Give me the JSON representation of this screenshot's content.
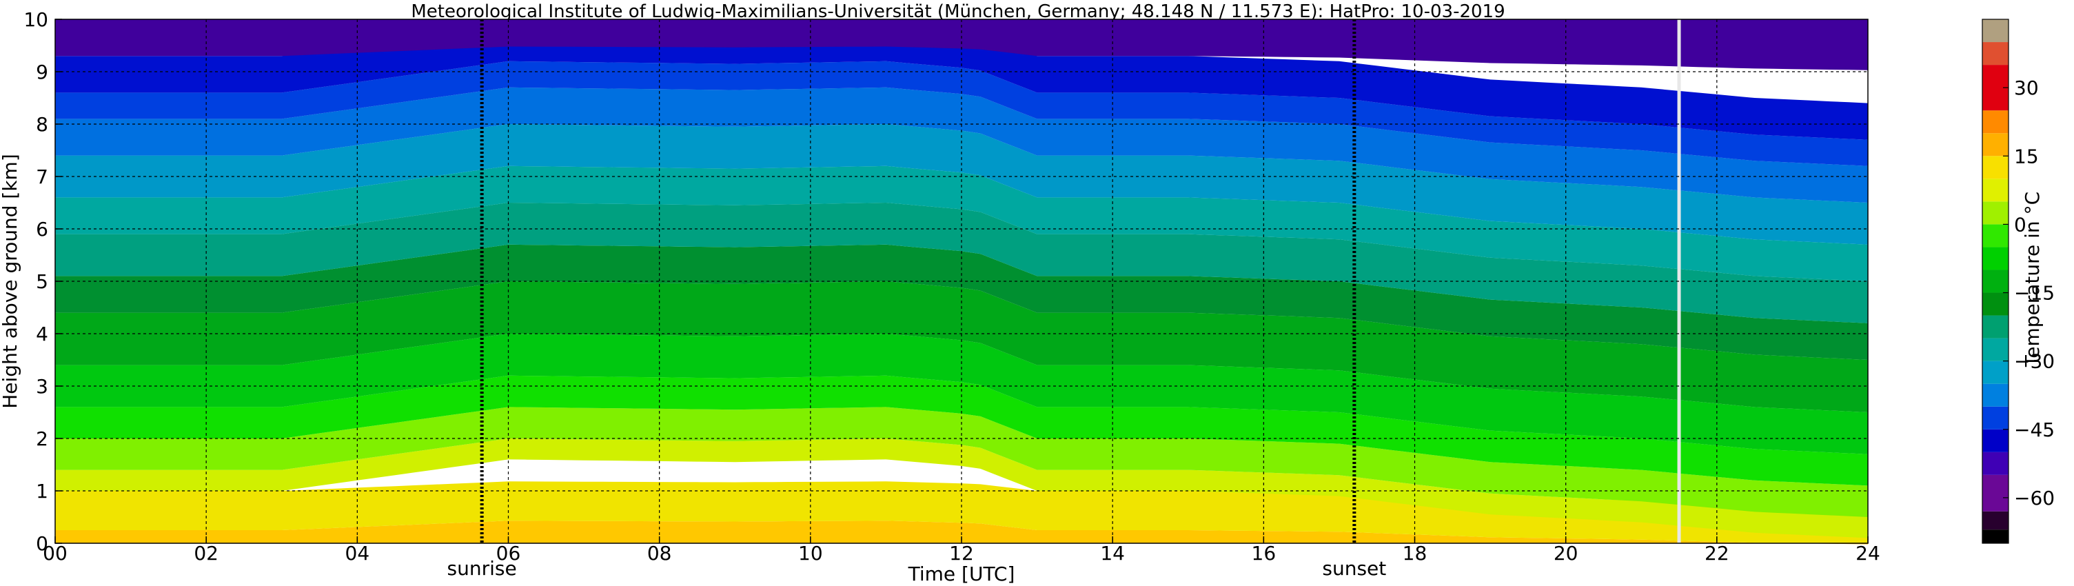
{
  "chart_data": {
    "type": "heatmap",
    "title": "Meteorological Institute of Ludwig-Maximilians-Universität (München, Germany; 48.148 N / 11.573 E):    HatPro: 10-03-2019",
    "xlabel": "Time [UTC]",
    "ylabel": "Height above ground [km]",
    "xlim": [
      0,
      24
    ],
    "ylim": [
      0,
      10
    ],
    "x_ticks": [
      "00",
      "02",
      "04",
      "06",
      "08",
      "10",
      "12",
      "14",
      "16",
      "18",
      "20",
      "22",
      "24"
    ],
    "y_ticks": [
      "0",
      "1",
      "2",
      "3",
      "4",
      "5",
      "6",
      "7",
      "8",
      "9",
      "10"
    ],
    "grid": true,
    "events": [
      {
        "label": "sunrise",
        "time_utc": 5.65
      },
      {
        "label": "sunset",
        "time_utc": 17.2
      }
    ],
    "data_gap": {
      "time_utc": 21.5
    },
    "colorbar": {
      "label": "Temperature in °C",
      "ticks": [
        "30",
        "15",
        "0",
        "−15",
        "−30",
        "−45",
        "−60"
      ],
      "range": [
        -70,
        45
      ],
      "bins": [
        {
          "from": -70,
          "to": -67,
          "color": "#000000"
        },
        {
          "from": -67,
          "to": -63,
          "color": "#28002e"
        },
        {
          "from": -63,
          "to": -55,
          "color": "#6a0896"
        },
        {
          "from": -55,
          "to": -50,
          "color": "#3f00b5"
        },
        {
          "from": -50,
          "to": -45,
          "color": "#0000c8"
        },
        {
          "from": -45,
          "to": -40,
          "color": "#0040e0"
        },
        {
          "from": -40,
          "to": -35,
          "color": "#0080e0"
        },
        {
          "from": -35,
          "to": -30,
          "color": "#00a0c8"
        },
        {
          "from": -30,
          "to": -25,
          "color": "#00a8a0"
        },
        {
          "from": -25,
          "to": -20,
          "color": "#00a070"
        },
        {
          "from": -20,
          "to": -15,
          "color": "#009010"
        },
        {
          "from": -15,
          "to": -10,
          "color": "#00b010"
        },
        {
          "from": -10,
          "to": -5,
          "color": "#00d000"
        },
        {
          "from": -5,
          "to": 0,
          "color": "#30e800"
        },
        {
          "from": 0,
          "to": 5,
          "color": "#a0f000"
        },
        {
          "from": 5,
          "to": 10,
          "color": "#e0f000"
        },
        {
          "from": 10,
          "to": 15,
          "color": "#f8e000"
        },
        {
          "from": 15,
          "to": 20,
          "color": "#ffb000"
        },
        {
          "from": 20,
          "to": 25,
          "color": "#ff8a00"
        },
        {
          "from": 25,
          "to": 35,
          "color": "#e00010"
        },
        {
          "from": 35,
          "to": 40,
          "color": "#e05030"
        },
        {
          "from": 40,
          "to": 45,
          "color": "#b0a080"
        }
      ]
    },
    "band_boundaries_km": [
      0.25,
      1.0,
      1.4,
      2.0,
      2.6,
      3.4,
      4.4,
      5.1,
      5.9,
      6.6,
      7.4,
      8.1,
      8.6,
      9.3
    ],
    "band_colors": [
      "#ffc800",
      "#f0e400",
      "#d0f000",
      "#80f000",
      "#10e000",
      "#00c810",
      "#00a818",
      "#009030",
      "#00a080",
      "#00a8a0",
      "#0098c8",
      "#0070e0",
      "#0040e0",
      "#0010d0",
      "#40009c"
    ],
    "band_profile_hours": [
      0,
      3,
      4.5,
      6,
      9,
      11,
      12.2,
      13,
      15,
      17,
      19,
      21,
      22.5,
      24
    ],
    "band_profile_shift_km": [
      0,
      0,
      0.3,
      0.6,
      0.55,
      0.6,
      0.45,
      0,
      0,
      -0.1,
      -0.45,
      -0.6,
      -0.8,
      -0.9
    ]
  }
}
